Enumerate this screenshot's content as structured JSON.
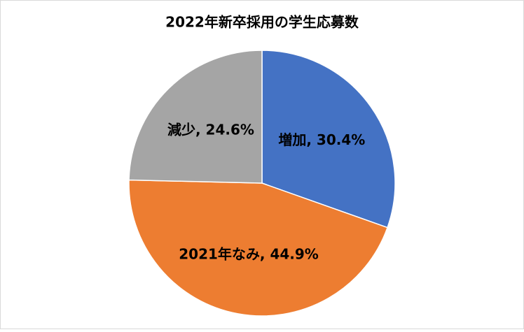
{
  "chart_data": {
    "type": "pie",
    "title": "2022年新卒採用の学生応募数",
    "values": [
      30.4,
      44.9,
      24.6
    ],
    "value_labels": [
      "増加, 30.4%",
      "2021年なみ, 44.9%",
      "減少, 24.6%"
    ],
    "colors": [
      "#4472c4",
      "#ed7d31",
      "#a5a5a5"
    ]
  }
}
